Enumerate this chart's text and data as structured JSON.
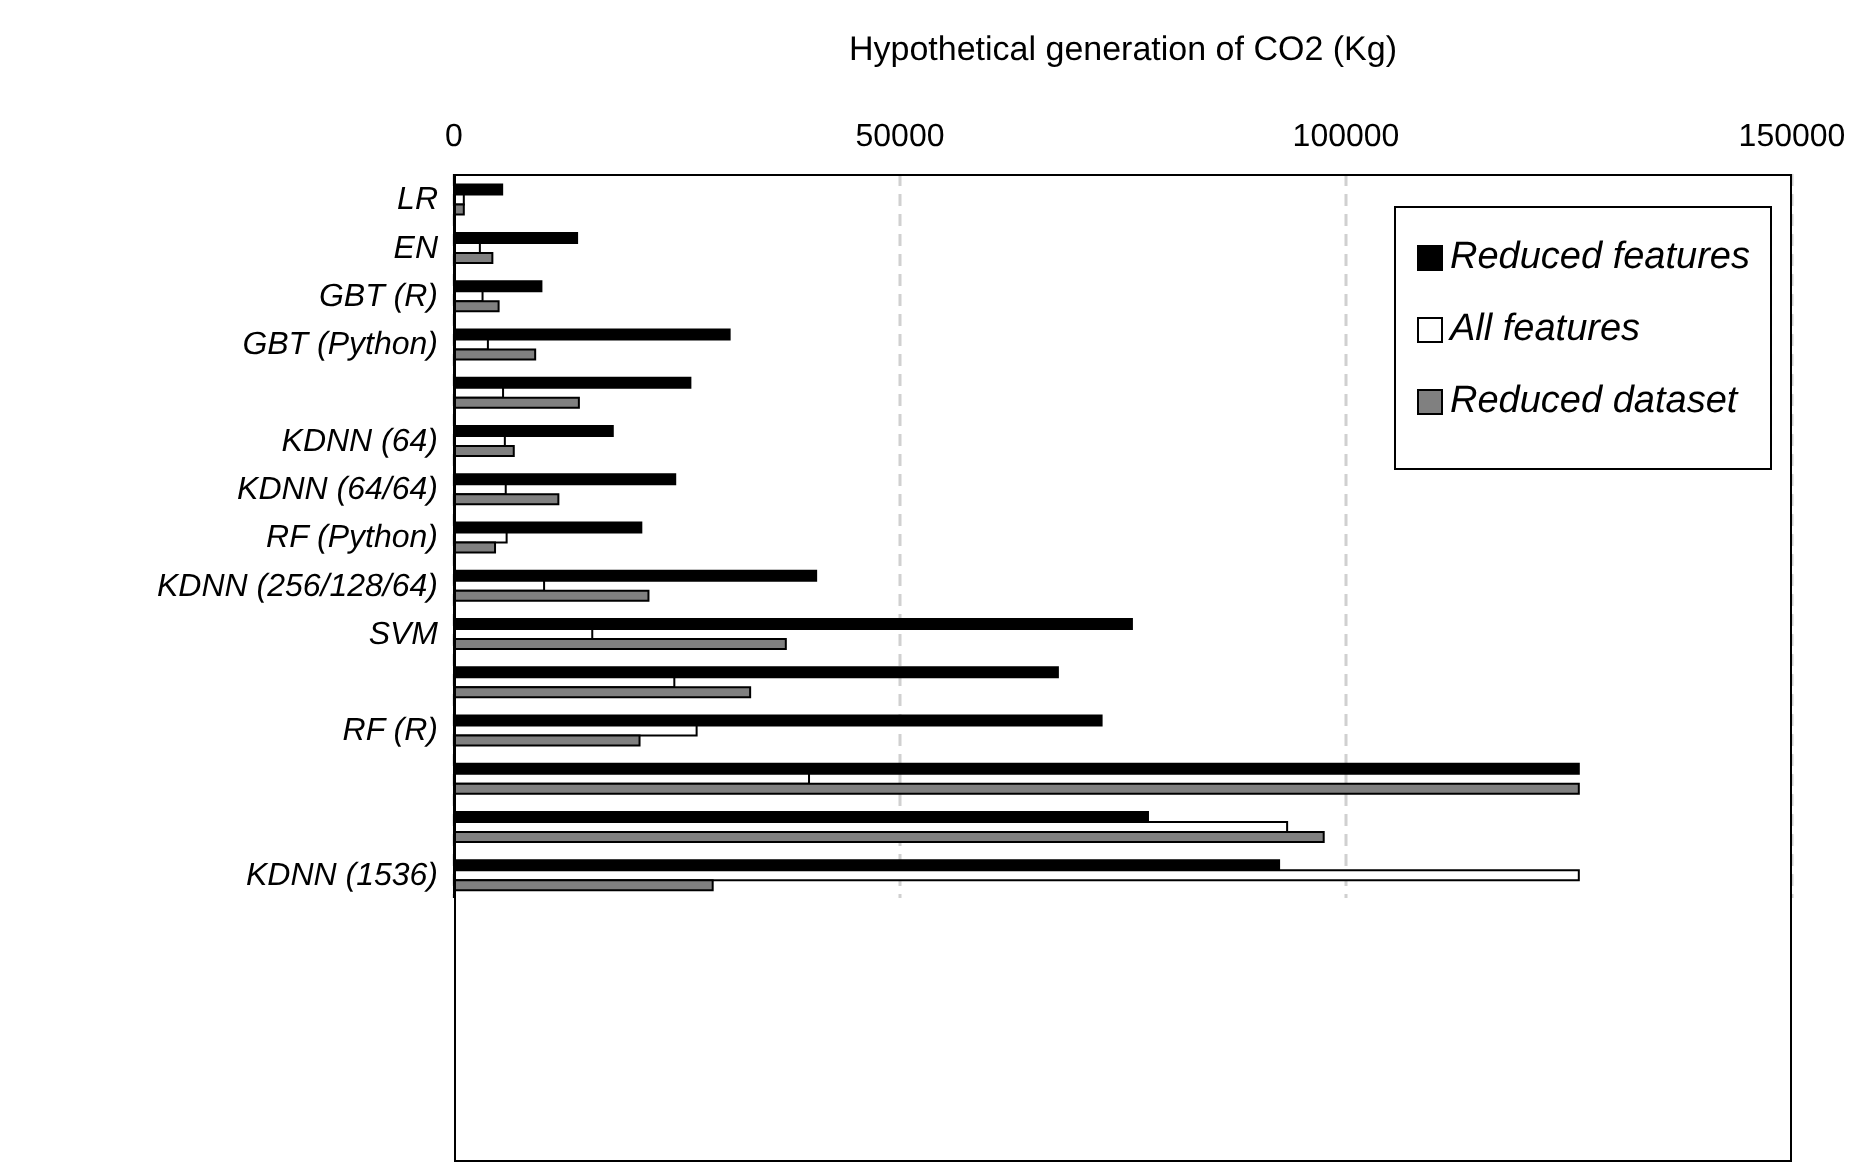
{
  "chart_data": {
    "type": "bar",
    "orientation": "horizontal",
    "xlabel": "Hypothetical generation of CO2 (Kg)",
    "categories": [
      "LR",
      "EN",
      "GBT (R)",
      "GBT (Python)",
      null,
      "KDNN (64)",
      "KDNN (64/64)",
      "RF (Python)",
      "KDNN (256/128/64)",
      "SVM",
      null,
      "RF (R)",
      null,
      null,
      "KDNN (1536)"
    ],
    "series": [
      {
        "name": "Reduced features",
        "color": "#000000",
        "values": [
          5400,
          13800,
          9800,
          30900,
          26500,
          17800,
          24800,
          21000,
          40600,
          76000,
          67700,
          72600,
          126100,
          77800,
          92500
        ]
      },
      {
        "name": "All features",
        "color": "#ffffff",
        "values": [
          1100,
          2900,
          3200,
          3800,
          5500,
          5700,
          5800,
          5900,
          10100,
          15500,
          24700,
          27200,
          39800,
          93400,
          126100
        ]
      },
      {
        "name": "Reduced dataset",
        "color": "#808080",
        "values": [
          1100,
          4300,
          5000,
          9100,
          14000,
          6700,
          11700,
          4600,
          21800,
          37200,
          33200,
          20800,
          126100,
          97500,
          29000
        ]
      }
    ],
    "xlim": [
      0,
      150000
    ],
    "xticks": [
      0,
      50000,
      100000,
      150000
    ],
    "grid": "x",
    "legend": "top right"
  }
}
